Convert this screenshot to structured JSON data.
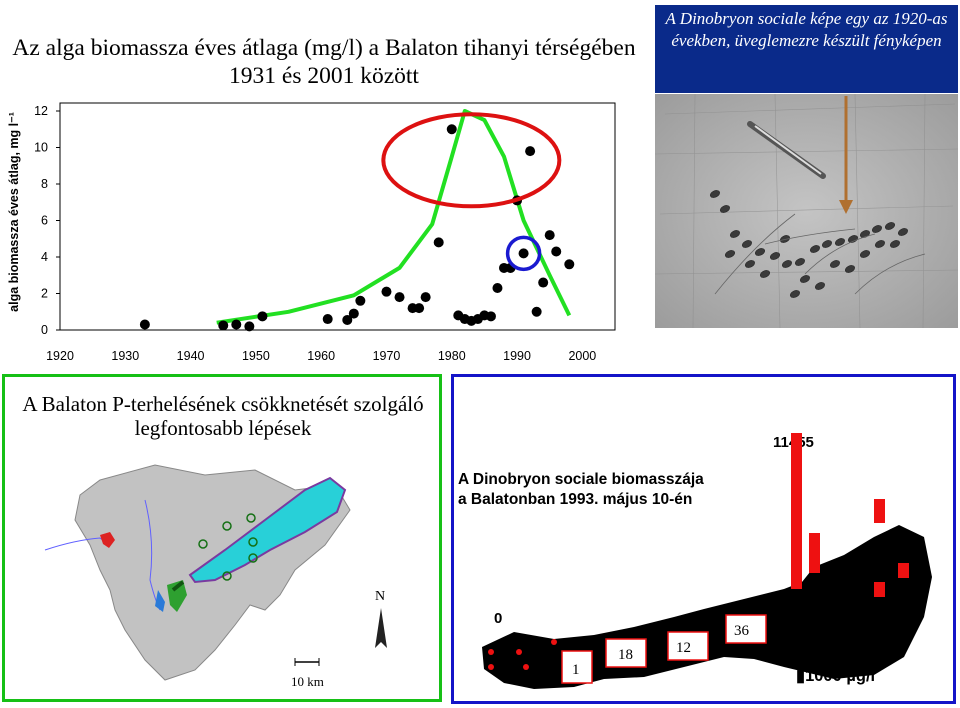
{
  "chart_data": {
    "type": "scatter",
    "title": "Az alga biomassza éves átlaga (mg/l) a Balaton tihanyi térségében 1931 és 2001 között",
    "ylabel": "alga biomassza éves átlag, mg l⁻¹",
    "xlabel": "",
    "xlim": [
      1920,
      2005
    ],
    "ylim": [
      0,
      12
    ],
    "xticks": [
      "1920",
      "1930",
      "1940",
      "1950",
      "1960",
      "1970",
      "1980",
      "1990",
      "2000"
    ],
    "yticks": [
      "0",
      "2",
      "4",
      "6",
      "8",
      "10",
      "12"
    ],
    "points": [
      [
        1933,
        0.3
      ],
      [
        1945,
        0.25
      ],
      [
        1947,
        0.3
      ],
      [
        1949,
        0.2
      ],
      [
        1951,
        0.75
      ],
      [
        1961,
        0.6
      ],
      [
        1964,
        0.55
      ],
      [
        1965,
        0.9
      ],
      [
        1966,
        1.6
      ],
      [
        1970,
        2.1
      ],
      [
        1972,
        1.8
      ],
      [
        1974,
        1.2
      ],
      [
        1975,
        1.2
      ],
      [
        1976,
        1.8
      ],
      [
        1978,
        4.8
      ],
      [
        1980,
        11.0
      ],
      [
        1981,
        0.8
      ],
      [
        1982,
        0.6
      ],
      [
        1983,
        0.5
      ],
      [
        1984,
        0.6
      ],
      [
        1985,
        0.8
      ],
      [
        1986,
        0.75
      ],
      [
        1987,
        2.3
      ],
      [
        1988,
        3.4
      ],
      [
        1989,
        3.4
      ],
      [
        1990,
        7.1
      ],
      [
        1991,
        4.2
      ],
      [
        1992,
        9.8
      ],
      [
        1993,
        1.0
      ],
      [
        1994,
        2.6
      ],
      [
        1995,
        5.2
      ],
      [
        1996,
        4.3
      ],
      [
        1998,
        3.6
      ]
    ],
    "trend_color": "#22e022",
    "highlight_ellipse_color": "#dd1111",
    "highlight_circle_color": "#1a1ad0",
    "grid": false,
    "legend": "none"
  },
  "chart_title": "Az alga biomassza éves átlaga (mg/l) a Balaton tihanyi térségében 1931 és 2001 között",
  "photo": {
    "caption": "A Dinobryon sociale képe egy az 1920-as években, üveglemezre készült fényképen",
    "arrow_color": "#b07030"
  },
  "green_panel": {
    "title": "A Balaton P-terhelésének csökknetését szolgáló legfontosabb lépések",
    "north_label": "N",
    "scale_label": "10 km",
    "border_color": "#16c016"
  },
  "blue_panel": {
    "title_line1": "A Dinobryon sociale biomasszája",
    "title_line2": "a Balatonban 1993. május 10-én",
    "peak_value": "11455",
    "values": [
      "0",
      "1",
      "18",
      "12",
      "36"
    ],
    "scale_label": "▮1000 µg/l",
    "bar_color": "#ee1111",
    "border_color": "#1414c8"
  }
}
